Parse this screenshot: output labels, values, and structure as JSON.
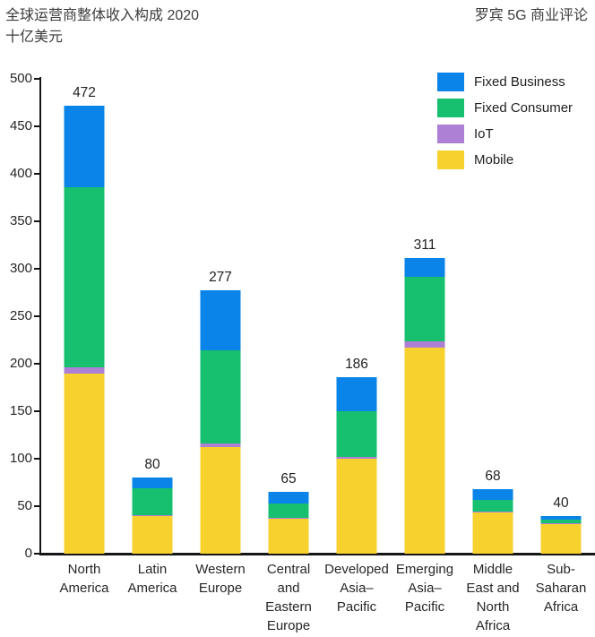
{
  "header": {
    "title": "全球运营商整体收入构成 2020",
    "units": "十亿美元",
    "brand": "罗宾 5G 商业评论"
  },
  "chart_data": {
    "type": "bar",
    "stacked": true,
    "title": "全球运营商整体收入构成 2020",
    "ylabel": "十亿美元",
    "xlabel": "",
    "ylim": [
      0,
      500
    ],
    "y_step": 50,
    "grid": false,
    "legend_position": "top-right",
    "categories": [
      "North America",
      "Latin America",
      "Western Europe",
      "Central and Eastern Europe",
      "Developed Asia–Pacific",
      "Emerging Asia–Pacific",
      "Middle East and North Africa",
      "Sub-Saharan Africa"
    ],
    "series": [
      {
        "name": "Mobile",
        "color": "#f7d22e",
        "values": [
          190,
          40,
          112,
          37,
          100,
          217,
          43,
          31
        ]
      },
      {
        "name": "IoT",
        "color": "#ad7fd5",
        "values": [
          6,
          1,
          4,
          1,
          2,
          7,
          1,
          1
        ]
      },
      {
        "name": "Fixed Consumer",
        "color": "#16c06f",
        "values": [
          190,
          28,
          98,
          15,
          48,
          68,
          13,
          4
        ]
      },
      {
        "name": "Fixed Business",
        "color": "#0a84e8",
        "values": [
          86,
          11,
          63,
          12,
          36,
          19,
          11,
          4
        ]
      }
    ],
    "totals": [
      472,
      80,
      277,
      65,
      186,
      311,
      68,
      40
    ],
    "legend": [
      "Fixed Business",
      "Fixed Consumer",
      "IoT",
      "Mobile"
    ],
    "axis_color": "#161616"
  }
}
